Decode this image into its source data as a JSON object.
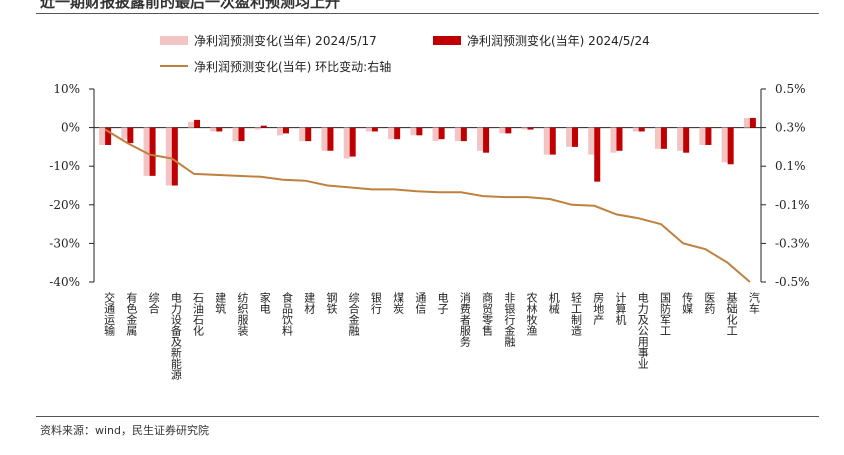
{
  "title": "近一期财报披露前的最后一次盈利预测均上升",
  "source": "资料来源：wind，民生证券研究院",
  "colors": {
    "series1": "#f2c4c4",
    "series2": "#c00000",
    "series3": "#c0803e"
  },
  "chart_data": {
    "type": "bar",
    "categories": [
      "交通运输",
      "有色金属",
      "综合",
      "电力设备及新能源",
      "石油石化",
      "建筑",
      "纺织服装",
      "家电",
      "食品饮料",
      "建材",
      "钢铁",
      "综合金融",
      "银行",
      "煤炭",
      "通信",
      "电子",
      "消费者服务",
      "商贸零售",
      "非银行金融",
      "农林牧渔",
      "机械",
      "轻工制造",
      "房地产",
      "计算机",
      "电力及公用事业",
      "国防军工",
      "传媒",
      "医药",
      "基础化工",
      "汽车"
    ],
    "series": [
      {
        "name": "净利润预测变化(当年) 2024/5/17",
        "axis": "left",
        "values": [
          -4.5,
          -3,
          -12.5,
          -15,
          1.5,
          -1,
          -3.5,
          -0.5,
          -2,
          -3.5,
          -6,
          -8,
          -1,
          -3,
          -2,
          -3.5,
          -3.5,
          -6,
          -1.5,
          -0.5,
          -7,
          -5,
          -7,
          -6.5,
          -1,
          -5.5,
          -6,
          -4.5,
          -9,
          2.5
        ]
      },
      {
        "name": "净利润预测变化(当年) 2024/5/24",
        "axis": "left",
        "values": [
          -4.5,
          -4,
          -12.5,
          -15,
          2,
          -1,
          -3.5,
          0.5,
          -1.5,
          -3.5,
          -6,
          -7.5,
          -1,
          -3,
          -2,
          -3,
          -3.5,
          -6.5,
          -1.5,
          -0.5,
          -7,
          -5,
          -14,
          -6,
          -1,
          -5.5,
          -6.5,
          -4.5,
          -9.5,
          2.5
        ]
      },
      {
        "name": "净利润预测变化(当年) 环比变动:右轴",
        "axis": "right",
        "type": "line",
        "values": [
          0.29,
          0.22,
          0.16,
          0.14,
          0.06,
          0.055,
          0.05,
          0.045,
          0.03,
          0.025,
          0.0,
          -0.01,
          -0.02,
          -0.02,
          -0.03,
          -0.035,
          -0.035,
          -0.055,
          -0.06,
          -0.06,
          -0.07,
          -0.1,
          -0.105,
          -0.15,
          -0.17,
          -0.2,
          -0.3,
          -0.33,
          -0.4,
          -0.52
        ]
      }
    ],
    "left_axis": {
      "min": -40,
      "max": 10,
      "ticks": [
        "10%",
        "0%",
        "-10%",
        "-20%",
        "-30%",
        "-40%"
      ]
    },
    "right_axis": {
      "min": -0.5,
      "max": 0.5,
      "ticks": [
        "0.5%",
        "0.3%",
        "0.1%",
        "-0.1%",
        "-0.3%",
        "-0.5%"
      ]
    },
    "legend_position": "top",
    "grid": false
  }
}
